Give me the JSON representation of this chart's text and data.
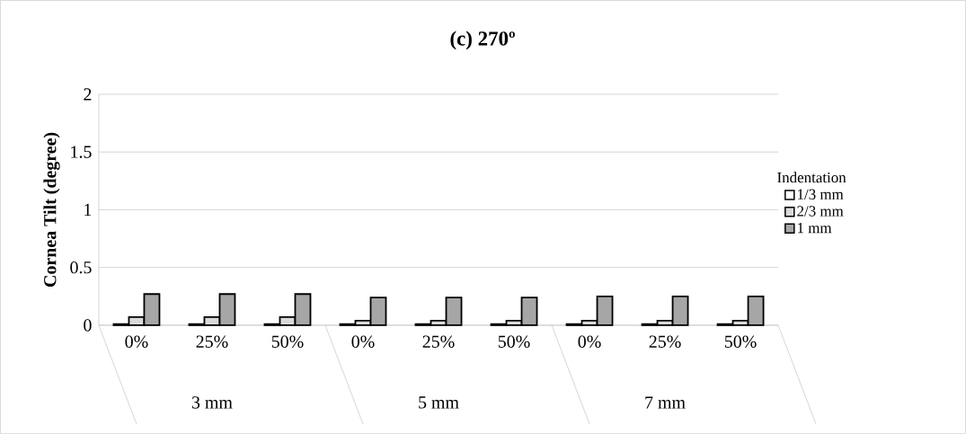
{
  "chart_data": {
    "type": "bar",
    "title": "**(c) 270º**",
    "ylabel": "Cornea Tilt (degree)",
    "legend_title": "Indentation",
    "categories": [
      "0%",
      "25%",
      "50%",
      "0%",
      "25%",
      "50%",
      "0%",
      "25%",
      "50%"
    ],
    "series": [
      {
        "name": "1/3 mm",
        "color": "#ffffff",
        "values": [
          0.01,
          0.01,
          0.01,
          0.01,
          0.01,
          0.01,
          0.01,
          0.01,
          0.01
        ]
      },
      {
        "name": "2/3  mm",
        "color": "#d9d9d9",
        "values": [
          0.07,
          0.07,
          0.07,
          0.04,
          0.04,
          0.04,
          0.04,
          0.04,
          0.04
        ]
      },
      {
        "name": "1  mm",
        "color": "#a6a6a6",
        "values": [
          0.27,
          0.27,
          0.27,
          0.24,
          0.24,
          0.24,
          0.25,
          0.25,
          0.25
        ]
      }
    ],
    "annotations": [
      "3 mm",
      "5 mm",
      "7 mm"
    ],
    "ylim": [
      0,
      2
    ],
    "yticks": [
      0,
      0.5,
      1,
      1.5,
      2
    ],
    "grid": "y",
    "legend": "right"
  }
}
